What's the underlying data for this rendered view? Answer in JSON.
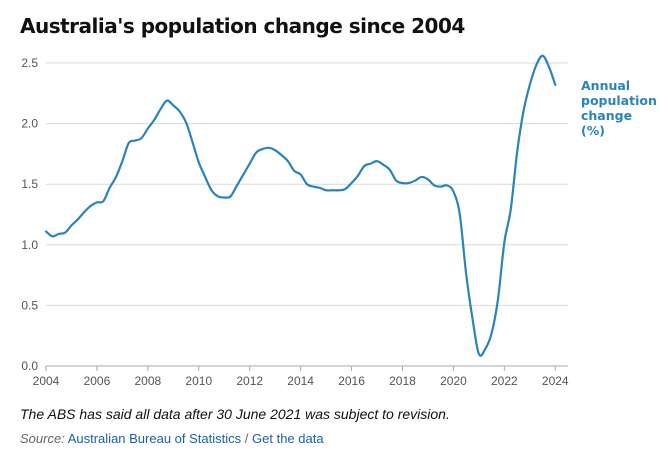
{
  "title": "Australia's population change since 2004",
  "note": "The ABS has said all data after 30 June 2021  was subject to revision.",
  "source": {
    "label": "Source:",
    "provider": "Australian Bureau of Statistics",
    "separator": "/",
    "link_text": "Get the data"
  },
  "colors": {
    "line": "#2a84ba",
    "grid": "#d9d9d9",
    "axis": "#aaaaaa",
    "text": "#111111",
    "muted": "#555555"
  },
  "chart_data": {
    "type": "line",
    "title": "Australia's population change since 2004",
    "xlabel": "",
    "ylabel": "",
    "xlim": [
      2004,
      2024.5
    ],
    "ylim": [
      0,
      2.5
    ],
    "grid": true,
    "x_ticks": [
      2004,
      2006,
      2008,
      2010,
      2012,
      2014,
      2016,
      2018,
      2020,
      2022,
      2024
    ],
    "x_tick_labels": [
      "2004",
      "2006",
      "2008",
      "2010",
      "2012",
      "2014",
      "2016",
      "2018",
      "2020",
      "2022",
      "2024"
    ],
    "y_ticks": [
      0,
      0.5,
      1.0,
      1.5,
      2.0,
      2.5
    ],
    "y_tick_labels": [
      "0.0",
      "0.5",
      "1.0",
      "1.5",
      "2.0",
      "2.5"
    ],
    "series": [
      {
        "name": "Annual population change (%)",
        "label_lines": [
          "Annual",
          "population",
          "change",
          "(%)"
        ],
        "x": [
          2004.0,
          2004.25,
          2004.5,
          2004.75,
          2005.0,
          2005.25,
          2005.5,
          2005.75,
          2006.0,
          2006.25,
          2006.5,
          2006.75,
          2007.0,
          2007.25,
          2007.5,
          2007.75,
          2008.0,
          2008.25,
          2008.5,
          2008.75,
          2009.0,
          2009.25,
          2009.5,
          2009.75,
          2010.0,
          2010.25,
          2010.5,
          2010.75,
          2011.0,
          2011.25,
          2011.5,
          2011.75,
          2012.0,
          2012.25,
          2012.5,
          2012.75,
          2013.0,
          2013.25,
          2013.5,
          2013.75,
          2014.0,
          2014.25,
          2014.5,
          2014.75,
          2015.0,
          2015.25,
          2015.5,
          2015.75,
          2016.0,
          2016.25,
          2016.5,
          2016.75,
          2017.0,
          2017.25,
          2017.5,
          2017.75,
          2018.0,
          2018.25,
          2018.5,
          2018.75,
          2019.0,
          2019.25,
          2019.5,
          2019.75,
          2020.0,
          2020.25,
          2020.5,
          2020.75,
          2021.0,
          2021.25,
          2021.5,
          2021.75,
          2022.0,
          2022.25,
          2022.5,
          2022.75,
          2023.0,
          2023.25,
          2023.5,
          2023.75,
          2024.0
        ],
        "values": [
          1.11,
          1.07,
          1.09,
          1.1,
          1.16,
          1.21,
          1.27,
          1.32,
          1.35,
          1.36,
          1.47,
          1.56,
          1.69,
          1.84,
          1.86,
          1.88,
          1.96,
          2.03,
          2.12,
          2.19,
          2.15,
          2.1,
          2.01,
          1.85,
          1.68,
          1.56,
          1.45,
          1.4,
          1.39,
          1.4,
          1.49,
          1.58,
          1.67,
          1.76,
          1.79,
          1.8,
          1.78,
          1.74,
          1.69,
          1.61,
          1.58,
          1.5,
          1.48,
          1.47,
          1.45,
          1.45,
          1.45,
          1.46,
          1.51,
          1.57,
          1.65,
          1.67,
          1.69,
          1.66,
          1.62,
          1.53,
          1.51,
          1.51,
          1.53,
          1.56,
          1.54,
          1.49,
          1.48,
          1.49,
          1.44,
          1.25,
          0.76,
          0.39,
          0.1,
          0.14,
          0.27,
          0.55,
          1.02,
          1.29,
          1.76,
          2.1,
          2.32,
          2.48,
          2.56,
          2.47,
          2.32
        ]
      }
    ]
  }
}
